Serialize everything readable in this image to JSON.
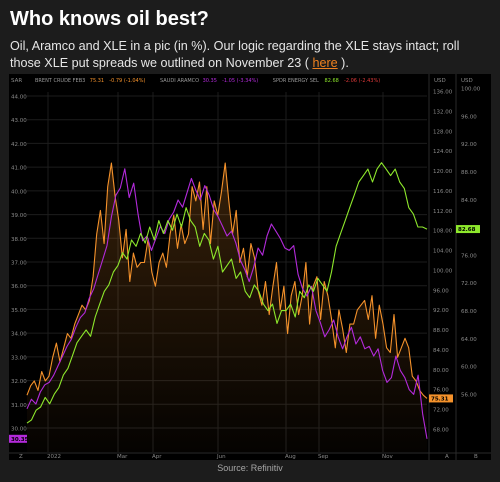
{
  "header": {
    "title": "Who knows oil best?",
    "subtitle_pre": "Oil, Aramco and XLE in a pic (in %). Our logic regarding the XLE stays intact; roll those XLE put spreads we outlined on November 23 ( ",
    "link_text": "here",
    "subtitle_post": " )."
  },
  "footer": {
    "source": "Source: Refinitiv"
  },
  "colors": {
    "brent": "#f5922b",
    "aramco": "#b32adb",
    "xle": "#8ee82c",
    "background": "#000000",
    "link": "#f0821f"
  },
  "chart_data": {
    "type": "line",
    "corner_labels": {
      "left": "SAR",
      "right1": "USD",
      "right2": "USD"
    },
    "x_ticks": [
      "Z",
      "2022",
      "Mar",
      "Apr",
      "Jun",
      "Aug",
      "Sep",
      "Nov",
      "A",
      "B"
    ],
    "left_axis": {
      "unit": "SAR",
      "range": [
        29.8,
        44.8
      ],
      "ticks": [
        "44.00",
        "43.00",
        "42.00",
        "41.00",
        "40.00",
        "39.00",
        "38.00",
        "37.00",
        "36.00",
        "35.00",
        "34.00",
        "33.00",
        "32.00",
        "31.00",
        "30.00"
      ]
    },
    "usd_axis_1": {
      "unit": "USD",
      "range": [
        64,
        140
      ],
      "ticks": [
        "136.00",
        "132.00",
        "128.00",
        "124.00",
        "120.00",
        "116.00",
        "112.00",
        "108.00",
        "104.00",
        "100.00",
        "96.00",
        "92.00",
        "88.00",
        "84.00",
        "80.00",
        "76.00",
        "72.00",
        "68.00"
      ]
    },
    "usd_axis_2": {
      "unit": "USD",
      "range": [
        48,
        104
      ],
      "ticks": [
        "100.00",
        "96.00",
        "92.00",
        "88.00",
        "84.00",
        "80.00",
        "76.00",
        "72.00",
        "68.00",
        "64.00",
        "60.00",
        "56.00"
      ]
    },
    "series": [
      {
        "name": "BRENT CRUDE FEB3",
        "last": "75.31",
        "change": "-0.79 (-1.04%)",
        "axis": "usd_axis_1",
        "values": [
          76,
          78,
          79,
          77,
          81,
          79,
          80,
          84,
          87,
          83,
          86,
          89,
          88,
          91,
          93,
          95,
          94,
          96,
          101,
          110,
          115,
          108,
          120,
          125,
          118,
          113,
          105,
          111,
          100,
          106,
          103,
          104,
          104,
          109,
          102,
          99,
          104,
          106,
          103,
          110,
          114,
          107,
          112,
          108,
          110,
          120,
          117,
          121,
          111,
          120,
          108,
          117,
          114,
          119,
          125,
          117,
          110,
          115,
          104,
          107,
          101,
          108,
          105,
          98,
          95,
          100,
          93,
          99,
          104,
          94,
          99,
          89,
          97,
          100,
          93,
          97,
          104,
          91,
          99,
          101,
          92,
          100,
          97,
          92,
          86,
          94,
          90,
          85,
          91,
          91,
          94,
          95,
          96,
          92,
          97,
          88,
          95,
          91,
          86,
          85,
          93,
          84,
          86,
          88,
          86,
          80,
          79,
          77,
          76,
          75.31
        ]
      },
      {
        "name": "SAUDI ARAMCO",
        "last": "30.35",
        "change": "-1.05 (-3.34%)",
        "axis": "left_axis",
        "values": [
          31.6,
          32.0,
          31.8,
          32.3,
          32.6,
          32.7,
          33.0,
          33.4,
          33.8,
          34.2,
          34.5,
          35.0,
          35.4,
          35.6,
          36.2,
          36.6,
          37.2,
          37.8,
          38.4,
          39.6,
          40.5,
          40.8,
          41.6,
          40.4,
          41.0,
          39.7,
          38.6,
          38.8,
          38.2,
          38.7,
          39.2,
          38.9,
          39.5,
          39.8,
          40.3,
          40.0,
          40.6,
          41.2,
          40.7,
          40.3,
          40.9,
          40.5,
          39.9,
          39.6,
          39.2,
          38.8,
          39.0,
          38.5,
          37.8,
          37.4,
          36.9,
          37.5,
          38.3,
          38.0,
          38.8,
          39.3,
          39.0,
          38.7,
          38.3,
          38.2,
          38.4,
          37.2,
          36.6,
          36.3,
          36.7,
          35.7,
          35.2,
          34.6,
          34.9,
          35.3,
          34.6,
          34.1,
          34.6,
          35.0,
          34.3,
          34.6,
          34.1,
          34.2,
          33.8,
          34.1,
          33.2,
          32.7,
          32.9,
          33.8,
          33.2,
          32.9,
          32.4,
          32.2,
          33.0,
          31.4,
          30.35
        ]
      },
      {
        "name": "SPDR ENERGY SEL",
        "last": "82.68",
        "change": "-2.06 (-2.43%)",
        "axis": "usd_axis_2",
        "values": [
          52.5,
          53,
          54.5,
          55,
          56.5,
          55.5,
          57,
          58,
          60,
          61,
          63,
          65,
          66,
          67,
          66,
          69,
          71,
          73,
          74,
          76,
          77,
          79,
          78,
          81,
          80,
          82,
          80.5,
          83,
          81,
          84,
          82,
          84,
          82.5,
          85,
          83,
          86,
          84,
          83,
          80,
          82,
          81,
          78,
          80,
          76,
          77,
          78,
          75,
          76,
          73,
          72,
          74,
          73,
          71,
          70,
          71,
          68,
          70,
          70,
          71,
          69,
          73,
          72,
          74,
          73,
          75,
          74,
          73,
          76,
          80,
          82,
          84,
          86,
          88,
          90,
          91,
          92,
          90,
          92,
          93,
          92,
          91,
          92,
          90,
          89,
          86,
          85,
          83,
          83,
          82.68
        ]
      }
    ]
  }
}
